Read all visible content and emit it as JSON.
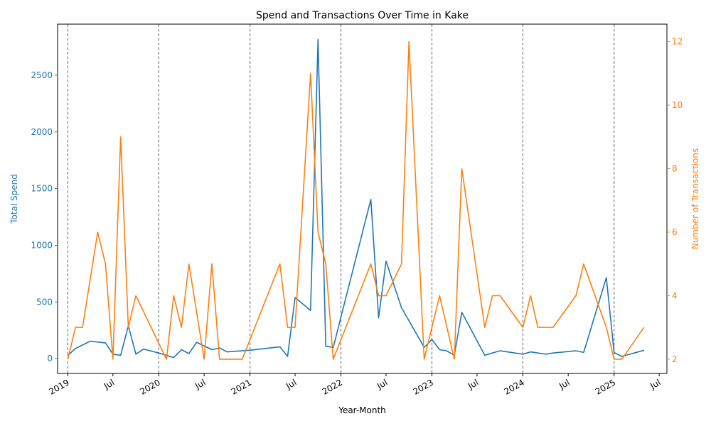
{
  "chart_data": {
    "type": "line",
    "title": "Spend and Transactions Over Time in Kake",
    "xlabel": "Year-Month",
    "ylabel_left": "Total Spend",
    "ylabel_right": "Number of Transactions",
    "xlim": [
      "2018-11-21",
      "2025-08-01"
    ],
    "ylim_left": [
      -130,
      2950
    ],
    "ylim_right": [
      1.55,
      12.55
    ],
    "yticks_left": [
      0,
      500,
      1000,
      1500,
      2000,
      2500
    ],
    "yticks_right": [
      2,
      4,
      6,
      8,
      10,
      12
    ],
    "xticks": [
      {
        "date": "2019-01-01",
        "label": "2019"
      },
      {
        "date": "2019-07-01",
        "label": "Jul"
      },
      {
        "date": "2020-01-01",
        "label": "2020"
      },
      {
        "date": "2020-07-01",
        "label": "Jul"
      },
      {
        "date": "2021-01-01",
        "label": "2021"
      },
      {
        "date": "2021-07-01",
        "label": "Jul"
      },
      {
        "date": "2022-01-01",
        "label": "2022"
      },
      {
        "date": "2022-07-01",
        "label": "Jul"
      },
      {
        "date": "2023-01-01",
        "label": "2023"
      },
      {
        "date": "2023-07-01",
        "label": "Jul"
      },
      {
        "date": "2024-01-01",
        "label": "2024"
      },
      {
        "date": "2024-07-01",
        "label": "Jul"
      },
      {
        "date": "2025-01-01",
        "label": "2025"
      },
      {
        "date": "2025-07-01",
        "label": "Jul"
      }
    ],
    "year_lines": [
      "2019-01-01",
      "2020-01-01",
      "2021-01-01",
      "2022-01-01",
      "2023-01-01",
      "2024-01-01",
      "2025-01-01"
    ],
    "grid": false,
    "series": [
      {
        "axis": "left",
        "color": "#1f77b4",
        "points": [
          [
            "2019-01-01",
            30
          ],
          [
            "2019-02-01",
            90
          ],
          [
            "2019-04-01",
            155
          ],
          [
            "2019-06-01",
            140
          ],
          [
            "2019-07-01",
            40
          ],
          [
            "2019-08-01",
            30
          ],
          [
            "2019-09-01",
            290
          ],
          [
            "2019-10-01",
            40
          ],
          [
            "2019-11-01",
            85
          ],
          [
            "2020-01-01",
            50
          ],
          [
            "2020-03-01",
            10
          ],
          [
            "2020-04-01",
            80
          ],
          [
            "2020-05-01",
            45
          ],
          [
            "2020-06-01",
            145
          ],
          [
            "2020-08-01",
            80
          ],
          [
            "2020-09-01",
            95
          ],
          [
            "2020-10-01",
            60
          ],
          [
            "2021-01-01",
            75
          ],
          [
            "2021-05-01",
            105
          ],
          [
            "2021-06-01",
            20
          ],
          [
            "2021-07-01",
            540
          ],
          [
            "2021-09-01",
            425
          ],
          [
            "2021-10-01",
            2815
          ],
          [
            "2021-11-01",
            110
          ],
          [
            "2021-12-01",
            100
          ],
          [
            "2022-05-01",
            1405
          ],
          [
            "2022-06-01",
            360
          ],
          [
            "2022-07-01",
            860
          ],
          [
            "2022-09-01",
            450
          ],
          [
            "2022-12-01",
            100
          ],
          [
            "2023-01-01",
            170
          ],
          [
            "2023-02-01",
            80
          ],
          [
            "2023-03-01",
            70
          ],
          [
            "2023-04-01",
            30
          ],
          [
            "2023-05-01",
            410
          ],
          [
            "2023-08-01",
            30
          ],
          [
            "2023-09-01",
            50
          ],
          [
            "2023-10-01",
            70
          ],
          [
            "2024-01-01",
            40
          ],
          [
            "2024-02-01",
            60
          ],
          [
            "2024-04-01",
            40
          ],
          [
            "2024-05-01",
            50
          ],
          [
            "2024-08-01",
            70
          ],
          [
            "2024-09-01",
            55
          ],
          [
            "2024-12-01",
            715
          ],
          [
            "2025-01-01",
            55
          ],
          [
            "2025-02-01",
            20
          ],
          [
            "2025-05-01",
            75
          ]
        ]
      },
      {
        "axis": "right",
        "color": "#ff7f0e",
        "points": [
          [
            "2019-01-01",
            2
          ],
          [
            "2019-02-01",
            3
          ],
          [
            "2019-03-01",
            3
          ],
          [
            "2019-05-01",
            6
          ],
          [
            "2019-06-01",
            5
          ],
          [
            "2019-07-01",
            2
          ],
          [
            "2019-08-01",
            9
          ],
          [
            "2019-09-01",
            3
          ],
          [
            "2019-10-01",
            4
          ],
          [
            "2020-01-01",
            2.5
          ],
          [
            "2020-02-01",
            2
          ],
          [
            "2020-03-01",
            4
          ],
          [
            "2020-04-01",
            3
          ],
          [
            "2020-05-01",
            5
          ],
          [
            "2020-07-01",
            2
          ],
          [
            "2020-08-01",
            5
          ],
          [
            "2020-09-01",
            2
          ],
          [
            "2020-12-01",
            2
          ],
          [
            "2021-05-01",
            5
          ],
          [
            "2021-06-01",
            3
          ],
          [
            "2021-07-01",
            3
          ],
          [
            "2021-09-01",
            11
          ],
          [
            "2021-10-01",
            6
          ],
          [
            "2021-11-01",
            5
          ],
          [
            "2021-12-01",
            2
          ],
          [
            "2022-05-01",
            5
          ],
          [
            "2022-06-01",
            4
          ],
          [
            "2022-07-01",
            4
          ],
          [
            "2022-09-01",
            5
          ],
          [
            "2022-10-01",
            12
          ],
          [
            "2022-12-01",
            2
          ],
          [
            "2023-02-01",
            4
          ],
          [
            "2023-04-01",
            2
          ],
          [
            "2023-05-01",
            8
          ],
          [
            "2023-08-01",
            3
          ],
          [
            "2023-09-01",
            4
          ],
          [
            "2023-10-01",
            4
          ],
          [
            "2024-01-01",
            3
          ],
          [
            "2024-02-01",
            4
          ],
          [
            "2024-03-01",
            3
          ],
          [
            "2024-05-01",
            3
          ],
          [
            "2024-08-01",
            4
          ],
          [
            "2024-09-01",
            5
          ],
          [
            "2024-12-01",
            3
          ],
          [
            "2025-01-01",
            2
          ],
          [
            "2025-02-01",
            2
          ],
          [
            "2025-05-01",
            3
          ]
        ]
      }
    ]
  },
  "colors": {
    "left_axis": "#1f77b4",
    "right_axis": "#ff7f0e",
    "year_lines": "#808080"
  }
}
